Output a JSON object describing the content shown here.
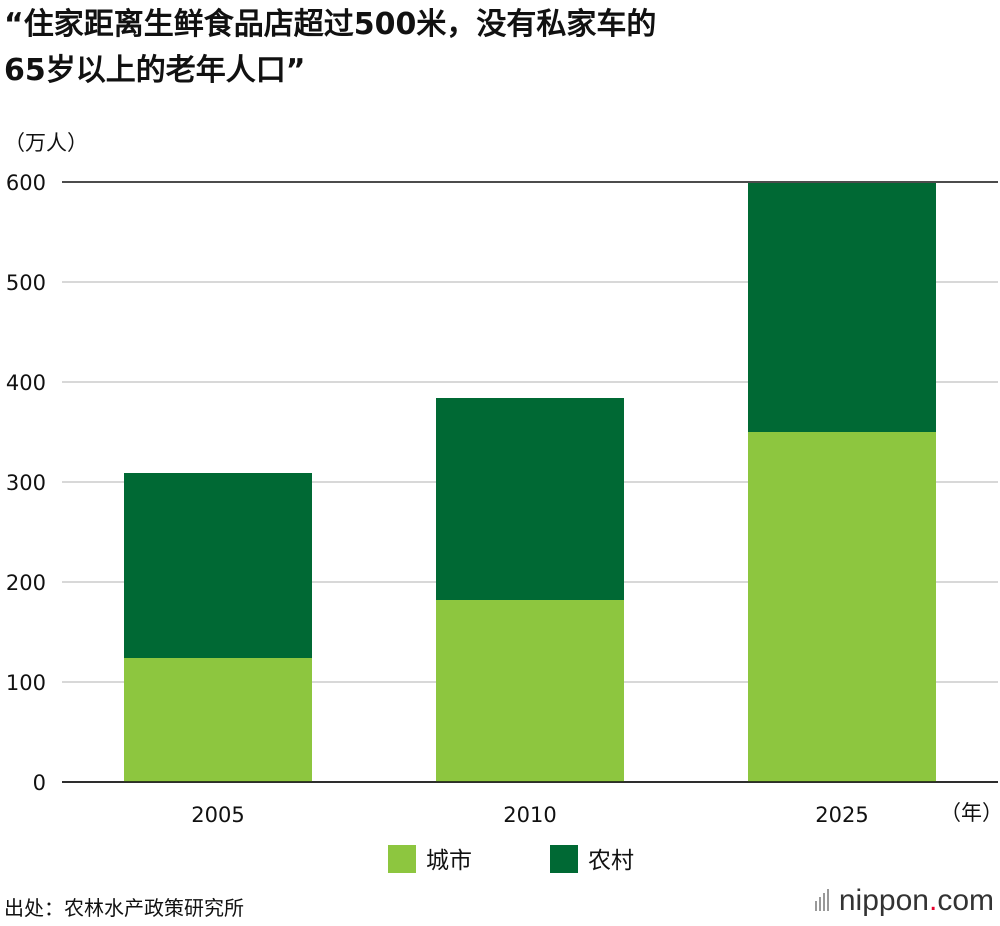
{
  "title_line1": "“住家距离生鲜食品店超过500米，没有私家车的",
  "title_line2": "65岁以上的老年人口”",
  "source": "出处：农林水产政策研究所",
  "logo": {
    "text": "nippon",
    "dot": ".",
    "suffix": "com"
  },
  "colors": {
    "urban": "#8dc63f",
    "rural": "#006934",
    "grid": "#cccccc",
    "axis": "#111111"
  },
  "chart_data": {
    "type": "bar",
    "stacked": true,
    "title": "“住家距离生鲜食品店超过500米，没有私家车的65岁以上的老年人口”",
    "ylabel": "（万人）",
    "xlabel": "（年）",
    "categories": [
      "2005",
      "2010",
      "2025"
    ],
    "series": [
      {
        "name": "城市",
        "values": [
          124,
          182,
          350
        ]
      },
      {
        "name": "农村",
        "values": [
          185,
          202,
          249
        ]
      }
    ],
    "ylim": [
      0,
      600
    ],
    "yticks": [
      0,
      100,
      200,
      300,
      400,
      500,
      600
    ],
    "legend": "bottom-center"
  }
}
